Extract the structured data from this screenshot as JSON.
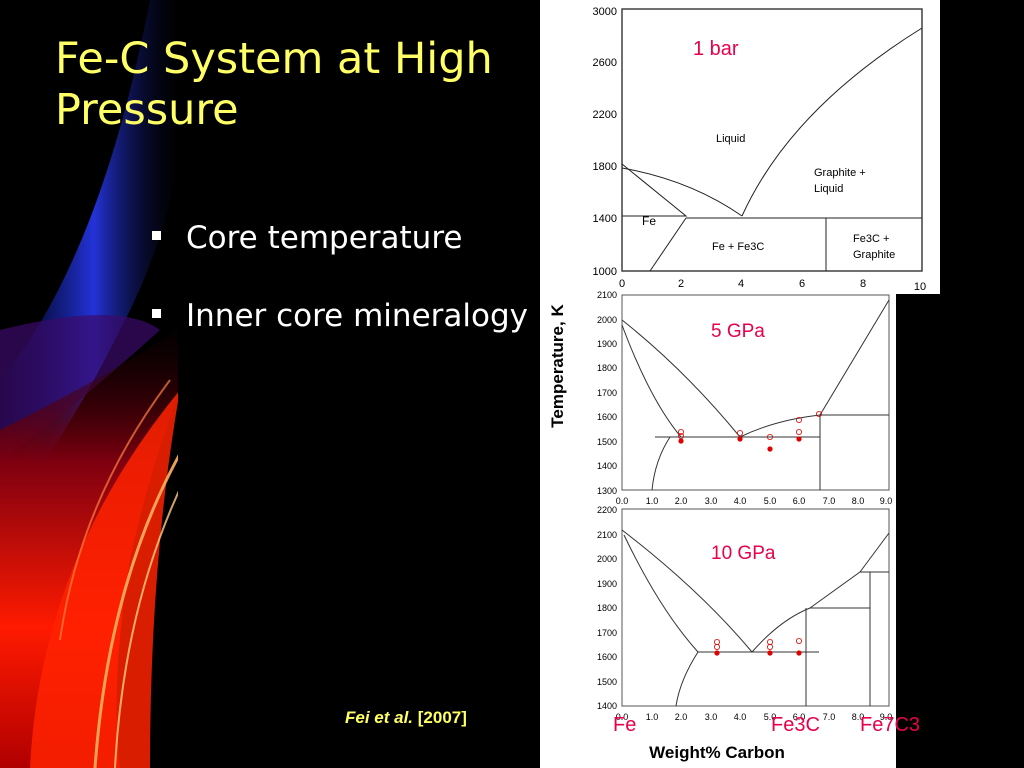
{
  "slide": {
    "title": "Fe-C System at High Pressure",
    "bullets": [
      "Core temperature",
      "Inner core mineralogy"
    ],
    "citation_authors": "Fei et al.",
    "citation_year": "[2007]"
  },
  "colors": {
    "title": "#ffff66",
    "bullet_text": "#ffffff",
    "annotation": "#e8004a",
    "data_points": "#e00000"
  },
  "figure": {
    "y_axis_label": "Temperature, K",
    "x_axis_label": "Weight% Carbon",
    "phase_labels": [
      "Fe",
      "Fe3C",
      "Fe7C3"
    ],
    "panels": [
      {
        "name": "1 bar",
        "y_ticks": [
          "3000",
          "2600",
          "2200",
          "1800",
          "1400",
          "1000"
        ],
        "x_ticks": [
          "0",
          "2",
          "4",
          "6",
          "8",
          "10"
        ],
        "field_labels": [
          "Liquid",
          "Graphite +",
          "Liquid",
          "Fe",
          "Fe + Fe3C",
          "Fe3C +",
          "Graphite"
        ]
      },
      {
        "name": "5 GPa",
        "y_ticks": [
          "2100",
          "2000",
          "1900",
          "1800",
          "1700",
          "1600",
          "1500",
          "1400",
          "1300"
        ],
        "x_ticks": [
          "0.0",
          "1.0",
          "2.0",
          "3.0",
          "4.0",
          "5.0",
          "6.0",
          "7.0",
          "8.0",
          "9.0"
        ]
      },
      {
        "name": "10 GPa",
        "y_ticks": [
          "2200",
          "2100",
          "2000",
          "1900",
          "1800",
          "1700",
          "1600",
          "1500",
          "1400"
        ],
        "x_ticks": [
          "0.0",
          "1.0",
          "2.0",
          "3.0",
          "4.0",
          "5.0",
          "6.0",
          "7.0",
          "8.0",
          "9.0"
        ]
      }
    ]
  }
}
